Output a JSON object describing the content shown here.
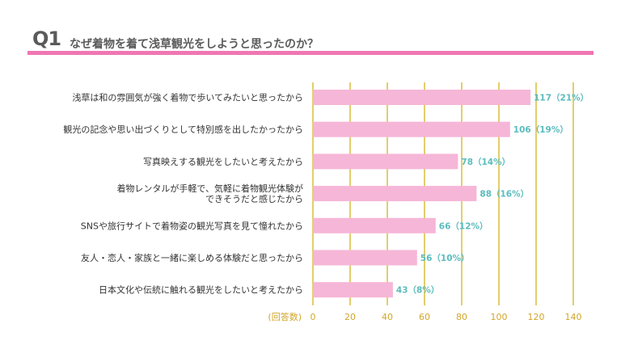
{
  "header": {
    "q_number": "Q1",
    "question": "なぜ着物を着て浅草観光をしようと思ったのか？"
  },
  "colors": {
    "bar": "#f6b6d7",
    "grid": "#d9bd3c",
    "value_label": "#5bbcbd",
    "axis_text": "#d2a62a",
    "category_text": "#333333",
    "title_rule": "#ef77b2"
  },
  "chart_data": {
    "type": "bar",
    "orientation": "horizontal",
    "categories": [
      [
        "浅草は和の雰囲気が強く着物で歩いてみたいと思ったから"
      ],
      [
        "観光の記念や思い出づくりとして特別感を出したかったから"
      ],
      [
        "写真映えする観光をしたいと考えたから"
      ],
      [
        "着物レンタルが手軽で、気軽に着物観光体験が",
        "できそうだと感じたから"
      ],
      [
        "SNSや旅行サイトで着物姿の観光写真を見て憧れたから"
      ],
      [
        "友人・恋人・家族と一緒に楽しめる体験だと思ったから"
      ],
      [
        "日本文化や伝統に触れる観光をしたいと考えたから"
      ]
    ],
    "values": [
      117,
      106,
      78,
      88,
      66,
      56,
      43
    ],
    "value_labels": [
      "117（21%）",
      "106（19%）",
      "78（14%）",
      "88（16%）",
      "66（12%）",
      "56（10%）",
      "43（8%）"
    ],
    "x_unit_label": "(回答数)",
    "xlim": [
      0,
      140
    ],
    "x_ticks": [
      0,
      20,
      40,
      60,
      80,
      100,
      120,
      140
    ],
    "grid": true
  }
}
